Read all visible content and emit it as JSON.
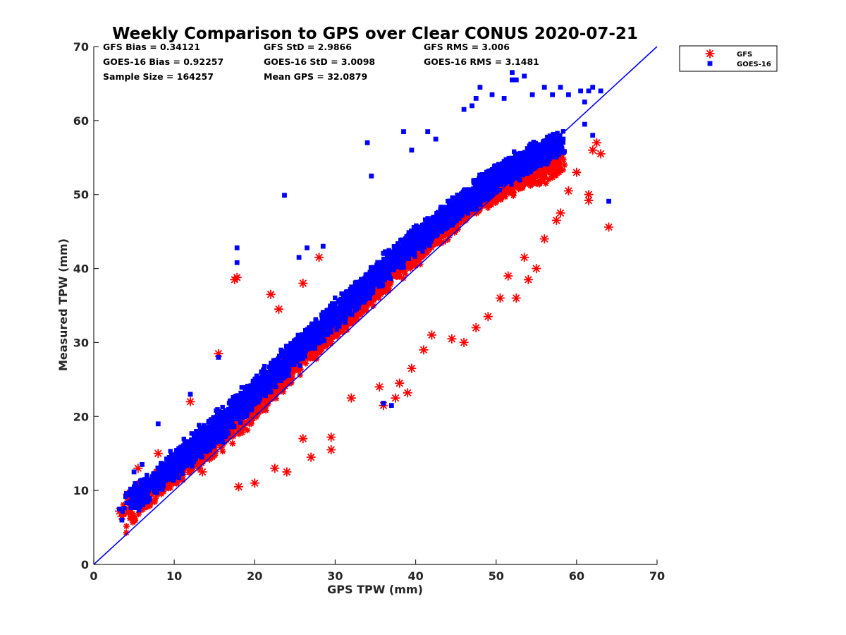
{
  "chart_data": {
    "type": "scatter",
    "title": "Weekly Comparison to GPS over Clear CONUS 2020-07-21",
    "xlabel": "GPS TPW (mm)",
    "ylabel": "Measured TPW (mm)",
    "xlim": [
      0,
      70
    ],
    "ylim": [
      0,
      70
    ],
    "xticks": [
      0,
      10,
      20,
      30,
      40,
      50,
      60,
      70
    ],
    "yticks": [
      0,
      10,
      20,
      30,
      40,
      50,
      60,
      70
    ],
    "grid": false,
    "legend_position": "outside-top-right",
    "reference_line": {
      "name": "1:1 line",
      "x": [
        0,
        70
      ],
      "y": [
        0,
        70
      ],
      "color": "#0000ff"
    },
    "stats": [
      [
        "GFS Bias = 0.34121",
        "GFS StD = 2.9866",
        "GFS RMS = 3.006"
      ],
      [
        "GOES-16 Bias = 0.92257",
        "GOES-16 StD = 3.0098",
        "GOES-16 RMS = 3.1481"
      ],
      [
        "Sample Size = 164257",
        "Mean GPS = 32.0879"
      ]
    ],
    "series": [
      {
        "name": "GFS",
        "marker": "asterisk",
        "color": "#ff0000",
        "bulk": [
          [
            4,
            6,
            7.5
          ],
          [
            6,
            8.5,
            9.5
          ],
          [
            10,
            12,
            13
          ],
          [
            15,
            16,
            17
          ],
          [
            20,
            21,
            22
          ],
          [
            25,
            27,
            27.5
          ],
          [
            30,
            32,
            32.5
          ],
          [
            35,
            37,
            37.5
          ],
          [
            40,
            42,
            42.5
          ],
          [
            45,
            47,
            47
          ],
          [
            50,
            51.5,
            50.5
          ],
          [
            55,
            54.5,
            52.5
          ],
          [
            58,
            56,
            54
          ]
        ],
        "outliers": [
          [
            3.2,
            7.2
          ],
          [
            3.5,
            6.5
          ],
          [
            4.2,
            9.5
          ],
          [
            5.5,
            13
          ],
          [
            8,
            15
          ],
          [
            12,
            22
          ],
          [
            15.5,
            28.5
          ],
          [
            17.5,
            38.5
          ],
          [
            17.8,
            38.8
          ],
          [
            22,
            36.5
          ],
          [
            23,
            34.5
          ],
          [
            26,
            38
          ],
          [
            28,
            41.5
          ],
          [
            13.5,
            12.5
          ],
          [
            18,
            10.5
          ],
          [
            20,
            11
          ],
          [
            22.5,
            13
          ],
          [
            24,
            12.5
          ],
          [
            26,
            17
          ],
          [
            27,
            14.5
          ],
          [
            29.5,
            15.5
          ],
          [
            29.5,
            17.2
          ],
          [
            32,
            22.5
          ],
          [
            35.5,
            24
          ],
          [
            36,
            21.5
          ],
          [
            37.5,
            22.5
          ],
          [
            38,
            24.5
          ],
          [
            39,
            23.2
          ],
          [
            39.5,
            26.5
          ],
          [
            41,
            29
          ],
          [
            42,
            31
          ],
          [
            44.5,
            30.5
          ],
          [
            46,
            30
          ],
          [
            47.5,
            32
          ],
          [
            49,
            33.5
          ],
          [
            50.5,
            36
          ],
          [
            51.5,
            39
          ],
          [
            52.5,
            36
          ],
          [
            53.5,
            41.5
          ],
          [
            54,
            38.5
          ],
          [
            55,
            40
          ],
          [
            56,
            44
          ],
          [
            57.5,
            46.5
          ],
          [
            58,
            47.5
          ],
          [
            59,
            50.5
          ],
          [
            60,
            53
          ],
          [
            61.5,
            50
          ],
          [
            61.5,
            49.2
          ],
          [
            62,
            56
          ],
          [
            62.5,
            57
          ],
          [
            63,
            55.5
          ],
          [
            64,
            45.6
          ]
        ]
      },
      {
        "name": "GOES-16",
        "marker": "square",
        "color": "#0000ff",
        "bulk": [
          [
            4,
            7,
            8
          ],
          [
            6,
            9.5,
            10
          ],
          [
            10,
            13,
            14
          ],
          [
            15,
            17.5,
            19
          ],
          [
            20,
            23,
            23.5
          ],
          [
            25,
            28.5,
            29
          ],
          [
            30,
            33.5,
            34
          ],
          [
            35,
            38.5,
            39
          ],
          [
            40,
            43.5,
            44
          ],
          [
            45,
            48,
            48
          ],
          [
            50,
            52.5,
            52
          ],
          [
            55,
            55.5,
            55
          ],
          [
            58,
            57,
            57
          ]
        ],
        "outliers": [
          [
            3.2,
            7.5
          ],
          [
            3.5,
            6
          ],
          [
            5,
            12.5
          ],
          [
            6,
            13.5
          ],
          [
            8,
            19
          ],
          [
            12,
            23
          ],
          [
            15.5,
            28
          ],
          [
            17.8,
            42.8
          ],
          [
            17.8,
            40.8
          ],
          [
            23.7,
            49.9
          ],
          [
            25.5,
            41.5
          ],
          [
            26.5,
            42.8
          ],
          [
            28.5,
            43
          ],
          [
            34.5,
            52.5
          ],
          [
            34,
            57
          ],
          [
            38.5,
            58.5
          ],
          [
            39.5,
            56
          ],
          [
            41.5,
            58.5
          ],
          [
            42.5,
            57.5
          ],
          [
            46,
            61.5
          ],
          [
            47,
            62
          ],
          [
            47.5,
            63
          ],
          [
            48,
            64.5
          ],
          [
            49.5,
            63.5
          ],
          [
            51,
            63
          ],
          [
            52,
            65.5
          ],
          [
            52.5,
            65.5
          ],
          [
            52,
            66.5
          ],
          [
            53.5,
            66
          ],
          [
            54.5,
            63.5
          ],
          [
            56,
            64.5
          ],
          [
            57,
            63.5
          ],
          [
            58,
            64.5
          ],
          [
            59,
            63.5
          ],
          [
            60.5,
            64
          ],
          [
            61,
            62.5
          ],
          [
            61.5,
            64
          ],
          [
            62,
            64.5
          ],
          [
            63,
            64
          ],
          [
            61,
            59.5
          ],
          [
            62,
            58
          ],
          [
            64,
            49.1
          ],
          [
            37,
            21.5
          ],
          [
            36,
            21.8
          ]
        ]
      }
    ]
  }
}
